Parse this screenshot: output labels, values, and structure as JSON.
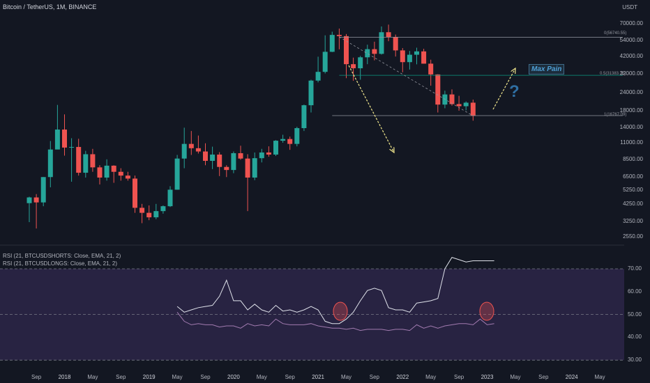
{
  "header": {
    "title": "Bitcoin / TetherUS, 1M, BINANCE",
    "price_unit": "USDT"
  },
  "price_axis": {
    "ticks": [
      "70000.00",
      "54000.00",
      "42000.00",
      "32000.00",
      "24000.00",
      "18000.00",
      "14000.00",
      "11000.00",
      "8500.00",
      "6500.00",
      "5250.00",
      "4250.00",
      "3250.00",
      "2550.00"
    ]
  },
  "fib_levels": {
    "level_0": "0(56740.55)",
    "level_05": "0.5(31383.25)",
    "level_1": "1(16767.09)"
  },
  "annotations": {
    "max_pain": "Max Pain",
    "question_mark": "?"
  },
  "rsi": {
    "legend_shorts": "RSI (21, BTCUSDSHORTS: Close, EMA, 21, 2)",
    "legend_longs": "RSI (21, BTCUSDLONGS: Close, EMA, 21, 2)",
    "ticks": [
      "70.00",
      "60.00",
      "50.00",
      "40.00",
      "30.00"
    ]
  },
  "time_axis": {
    "ticks": [
      "Sep",
      "2018",
      "May",
      "Sep",
      "2019",
      "May",
      "Sep",
      "2020",
      "May",
      "Sep",
      "2021",
      "May",
      "Sep",
      "2022",
      "May",
      "Sep",
      "2023",
      "May",
      "Sep",
      "2024",
      "May"
    ]
  },
  "colors": {
    "background": "#131722",
    "bull": "#26a69a",
    "bear": "#ef5350",
    "rsi_shorts": "#e0e3eb",
    "rsi_longs": "#a27bb0",
    "rsi_band": "#7e57c2",
    "arrows": "#f0e68c",
    "fib_05": "#089981",
    "max_pain": "#4fa0d6"
  },
  "chart_data": {
    "type": "candlestick",
    "interval": "1M",
    "symbol": "BTCUSDT",
    "y_scale": "log",
    "ylim": [
      2550,
      70000
    ],
    "candles": [
      {
        "date": "2017-08",
        "open": 4300,
        "high": 4750,
        "low": 3200,
        "close": 4700
      },
      {
        "date": "2017-09",
        "open": 4700,
        "high": 4950,
        "low": 2900,
        "close": 4350
      },
      {
        "date": "2017-10",
        "open": 4350,
        "high": 6450,
        "low": 4100,
        "close": 6450
      },
      {
        "date": "2017-11",
        "open": 6450,
        "high": 11300,
        "low": 5500,
        "close": 9900
      },
      {
        "date": "2017-12",
        "open": 9900,
        "high": 19800,
        "low": 10500,
        "close": 13500
      },
      {
        "date": "2018-01",
        "open": 13500,
        "high": 17100,
        "low": 9000,
        "close": 10200
      },
      {
        "date": "2018-02",
        "open": 10200,
        "high": 11800,
        "low": 6000,
        "close": 10300
      },
      {
        "date": "2018-03",
        "open": 10300,
        "high": 11700,
        "low": 6600,
        "close": 6900
      },
      {
        "date": "2018-04",
        "open": 6900,
        "high": 9700,
        "low": 6400,
        "close": 9200
      },
      {
        "date": "2018-05",
        "open": 9200,
        "high": 10000,
        "low": 7000,
        "close": 7500
      },
      {
        "date": "2018-06",
        "open": 7500,
        "high": 7750,
        "low": 5750,
        "close": 6400
      },
      {
        "date": "2018-07",
        "open": 6400,
        "high": 8500,
        "low": 6100,
        "close": 7700
      },
      {
        "date": "2018-08",
        "open": 7700,
        "high": 7750,
        "low": 5900,
        "close": 7000
      },
      {
        "date": "2018-09",
        "open": 7000,
        "high": 7400,
        "low": 6100,
        "close": 6600
      },
      {
        "date": "2018-10",
        "open": 6600,
        "high": 7000,
        "low": 6100,
        "close": 6300
      },
      {
        "date": "2018-11",
        "open": 6300,
        "high": 6600,
        "low": 3700,
        "close": 4000
      },
      {
        "date": "2018-12",
        "open": 4000,
        "high": 4250,
        "low": 3150,
        "close": 3700
      },
      {
        "date": "2019-01",
        "open": 3700,
        "high": 4150,
        "low": 3300,
        "close": 3450
      },
      {
        "date": "2019-02",
        "open": 3450,
        "high": 4250,
        "low": 3350,
        "close": 3800
      },
      {
        "date": "2019-03",
        "open": 3800,
        "high": 4150,
        "low": 3650,
        "close": 4100
      },
      {
        "date": "2019-04",
        "open": 4100,
        "high": 5600,
        "low": 4050,
        "close": 5300
      },
      {
        "date": "2019-05",
        "open": 5300,
        "high": 9100,
        "low": 5300,
        "close": 8600
      },
      {
        "date": "2019-06",
        "open": 8600,
        "high": 13900,
        "low": 7400,
        "close": 10800
      },
      {
        "date": "2019-07",
        "open": 10800,
        "high": 13200,
        "low": 9100,
        "close": 10100
      },
      {
        "date": "2019-08",
        "open": 10100,
        "high": 12300,
        "low": 9300,
        "close": 9600
      },
      {
        "date": "2019-09",
        "open": 9600,
        "high": 10900,
        "low": 7750,
        "close": 8300
      },
      {
        "date": "2019-10",
        "open": 8300,
        "high": 10350,
        "low": 7300,
        "close": 9150
      },
      {
        "date": "2019-11",
        "open": 9150,
        "high": 9500,
        "low": 6550,
        "close": 7550
      },
      {
        "date": "2019-12",
        "open": 7550,
        "high": 7750,
        "low": 6450,
        "close": 7200
      },
      {
        "date": "2020-01",
        "open": 7200,
        "high": 9600,
        "low": 6850,
        "close": 9350
      },
      {
        "date": "2020-02",
        "open": 9350,
        "high": 10500,
        "low": 8450,
        "close": 8600
      },
      {
        "date": "2020-03",
        "open": 8600,
        "high": 9200,
        "low": 3800,
        "close": 6400
      },
      {
        "date": "2020-04",
        "open": 6400,
        "high": 9450,
        "low": 6150,
        "close": 8650
      },
      {
        "date": "2020-05",
        "open": 8650,
        "high": 10000,
        "low": 8100,
        "close": 9450
      },
      {
        "date": "2020-06",
        "open": 9450,
        "high": 10400,
        "low": 8850,
        "close": 9150
      },
      {
        "date": "2020-07",
        "open": 9150,
        "high": 11450,
        "low": 8950,
        "close": 11350
      },
      {
        "date": "2020-08",
        "open": 11350,
        "high": 12450,
        "low": 11000,
        "close": 11650
      },
      {
        "date": "2020-09",
        "open": 11650,
        "high": 12100,
        "low": 9850,
        "close": 10800
      },
      {
        "date": "2020-10",
        "open": 10800,
        "high": 14100,
        "low": 10400,
        "close": 13800
      },
      {
        "date": "2020-11",
        "open": 13800,
        "high": 19900,
        "low": 13200,
        "close": 19700
      },
      {
        "date": "2020-12",
        "open": 19700,
        "high": 29300,
        "low": 17600,
        "close": 28900
      },
      {
        "date": "2021-01",
        "open": 28900,
        "high": 41900,
        "low": 28100,
        "close": 33100
      },
      {
        "date": "2021-02",
        "open": 33100,
        "high": 58400,
        "low": 32300,
        "close": 45200
      },
      {
        "date": "2021-03",
        "open": 45200,
        "high": 61800,
        "low": 45000,
        "close": 58800
      },
      {
        "date": "2021-04",
        "open": 58800,
        "high": 64900,
        "low": 47000,
        "close": 57700
      },
      {
        "date": "2021-05",
        "open": 57700,
        "high": 59600,
        "low": 30000,
        "close": 37300
      },
      {
        "date": "2021-06",
        "open": 37300,
        "high": 41300,
        "low": 28800,
        "close": 35000
      },
      {
        "date": "2021-07",
        "open": 35000,
        "high": 42400,
        "low": 29300,
        "close": 41500
      },
      {
        "date": "2021-08",
        "open": 41500,
        "high": 50500,
        "low": 37300,
        "close": 47100
      },
      {
        "date": "2021-09",
        "open": 47100,
        "high": 52900,
        "low": 39600,
        "close": 43800
      },
      {
        "date": "2021-10",
        "open": 43800,
        "high": 67000,
        "low": 43300,
        "close": 61300
      },
      {
        "date": "2021-11",
        "open": 61300,
        "high": 69000,
        "low": 53300,
        "close": 57000
      },
      {
        "date": "2021-12",
        "open": 57000,
        "high": 59100,
        "low": 42000,
        "close": 46200
      },
      {
        "date": "2022-01",
        "open": 46200,
        "high": 47900,
        "low": 32900,
        "close": 38500
      },
      {
        "date": "2022-02",
        "open": 38500,
        "high": 45800,
        "low": 34300,
        "close": 43200
      },
      {
        "date": "2022-03",
        "open": 43200,
        "high": 48200,
        "low": 37200,
        "close": 45500
      },
      {
        "date": "2022-04",
        "open": 45500,
        "high": 47400,
        "low": 37600,
        "close": 37600
      },
      {
        "date": "2022-05",
        "open": 37600,
        "high": 40000,
        "low": 26700,
        "close": 31800
      },
      {
        "date": "2022-06",
        "open": 31800,
        "high": 31900,
        "low": 17600,
        "close": 19900
      },
      {
        "date": "2022-07",
        "open": 19900,
        "high": 24700,
        "low": 18800,
        "close": 23300
      },
      {
        "date": "2022-08",
        "open": 23300,
        "high": 25200,
        "low": 19600,
        "close": 20050
      },
      {
        "date": "2022-09",
        "open": 20050,
        "high": 22800,
        "low": 18100,
        "close": 19400
      },
      {
        "date": "2022-10",
        "open": 19400,
        "high": 20900,
        "low": 18200,
        "close": 20500
      },
      {
        "date": "2022-11",
        "open": 20500,
        "high": 21500,
        "low": 15500,
        "close": 16700
      }
    ],
    "fib_retracement": [
      {
        "level": 0,
        "price": 56740.55
      },
      {
        "level": 0.5,
        "price": 31383.25
      },
      {
        "level": 1,
        "price": 16767.09
      }
    ],
    "rsi_panel": {
      "ylim": [
        30,
        75
      ],
      "band": [
        30,
        70
      ],
      "midline": 50,
      "series": [
        {
          "name": "RSI (21, BTCUSDSHORTS: Close, EMA, 21, 2)",
          "start": "2019-05",
          "values": [
            53.5,
            51,
            52,
            53,
            53.5,
            54,
            58,
            65,
            56,
            56,
            52,
            54.5,
            52,
            51,
            54,
            51.5,
            52,
            51,
            52,
            53.5,
            52,
            47,
            46,
            46,
            48,
            51,
            56,
            60.5,
            61.5,
            60.5,
            53,
            52,
            52,
            51,
            55,
            55.5,
            56,
            57,
            70,
            75,
            74,
            73,
            73.5,
            73.5,
            73.5,
            73.5
          ]
        },
        {
          "name": "RSI (21, BTCUSDLONGS: Close, EMA, 21, 2)",
          "start": "2019-05",
          "values": [
            51,
            47,
            45.5,
            46,
            45.5,
            45.5,
            44.5,
            45,
            45,
            44,
            46,
            45,
            45.5,
            45,
            48,
            46,
            45.5,
            45.5,
            45.5,
            46,
            45,
            44.5,
            44,
            44,
            43.5,
            44,
            43,
            43.5,
            43.5,
            43.5,
            43,
            43.5,
            43.5,
            43,
            45.5,
            44,
            45,
            44,
            45,
            45.5,
            46,
            46,
            45.5,
            48,
            45.5,
            46
          ]
        }
      ]
    }
  }
}
